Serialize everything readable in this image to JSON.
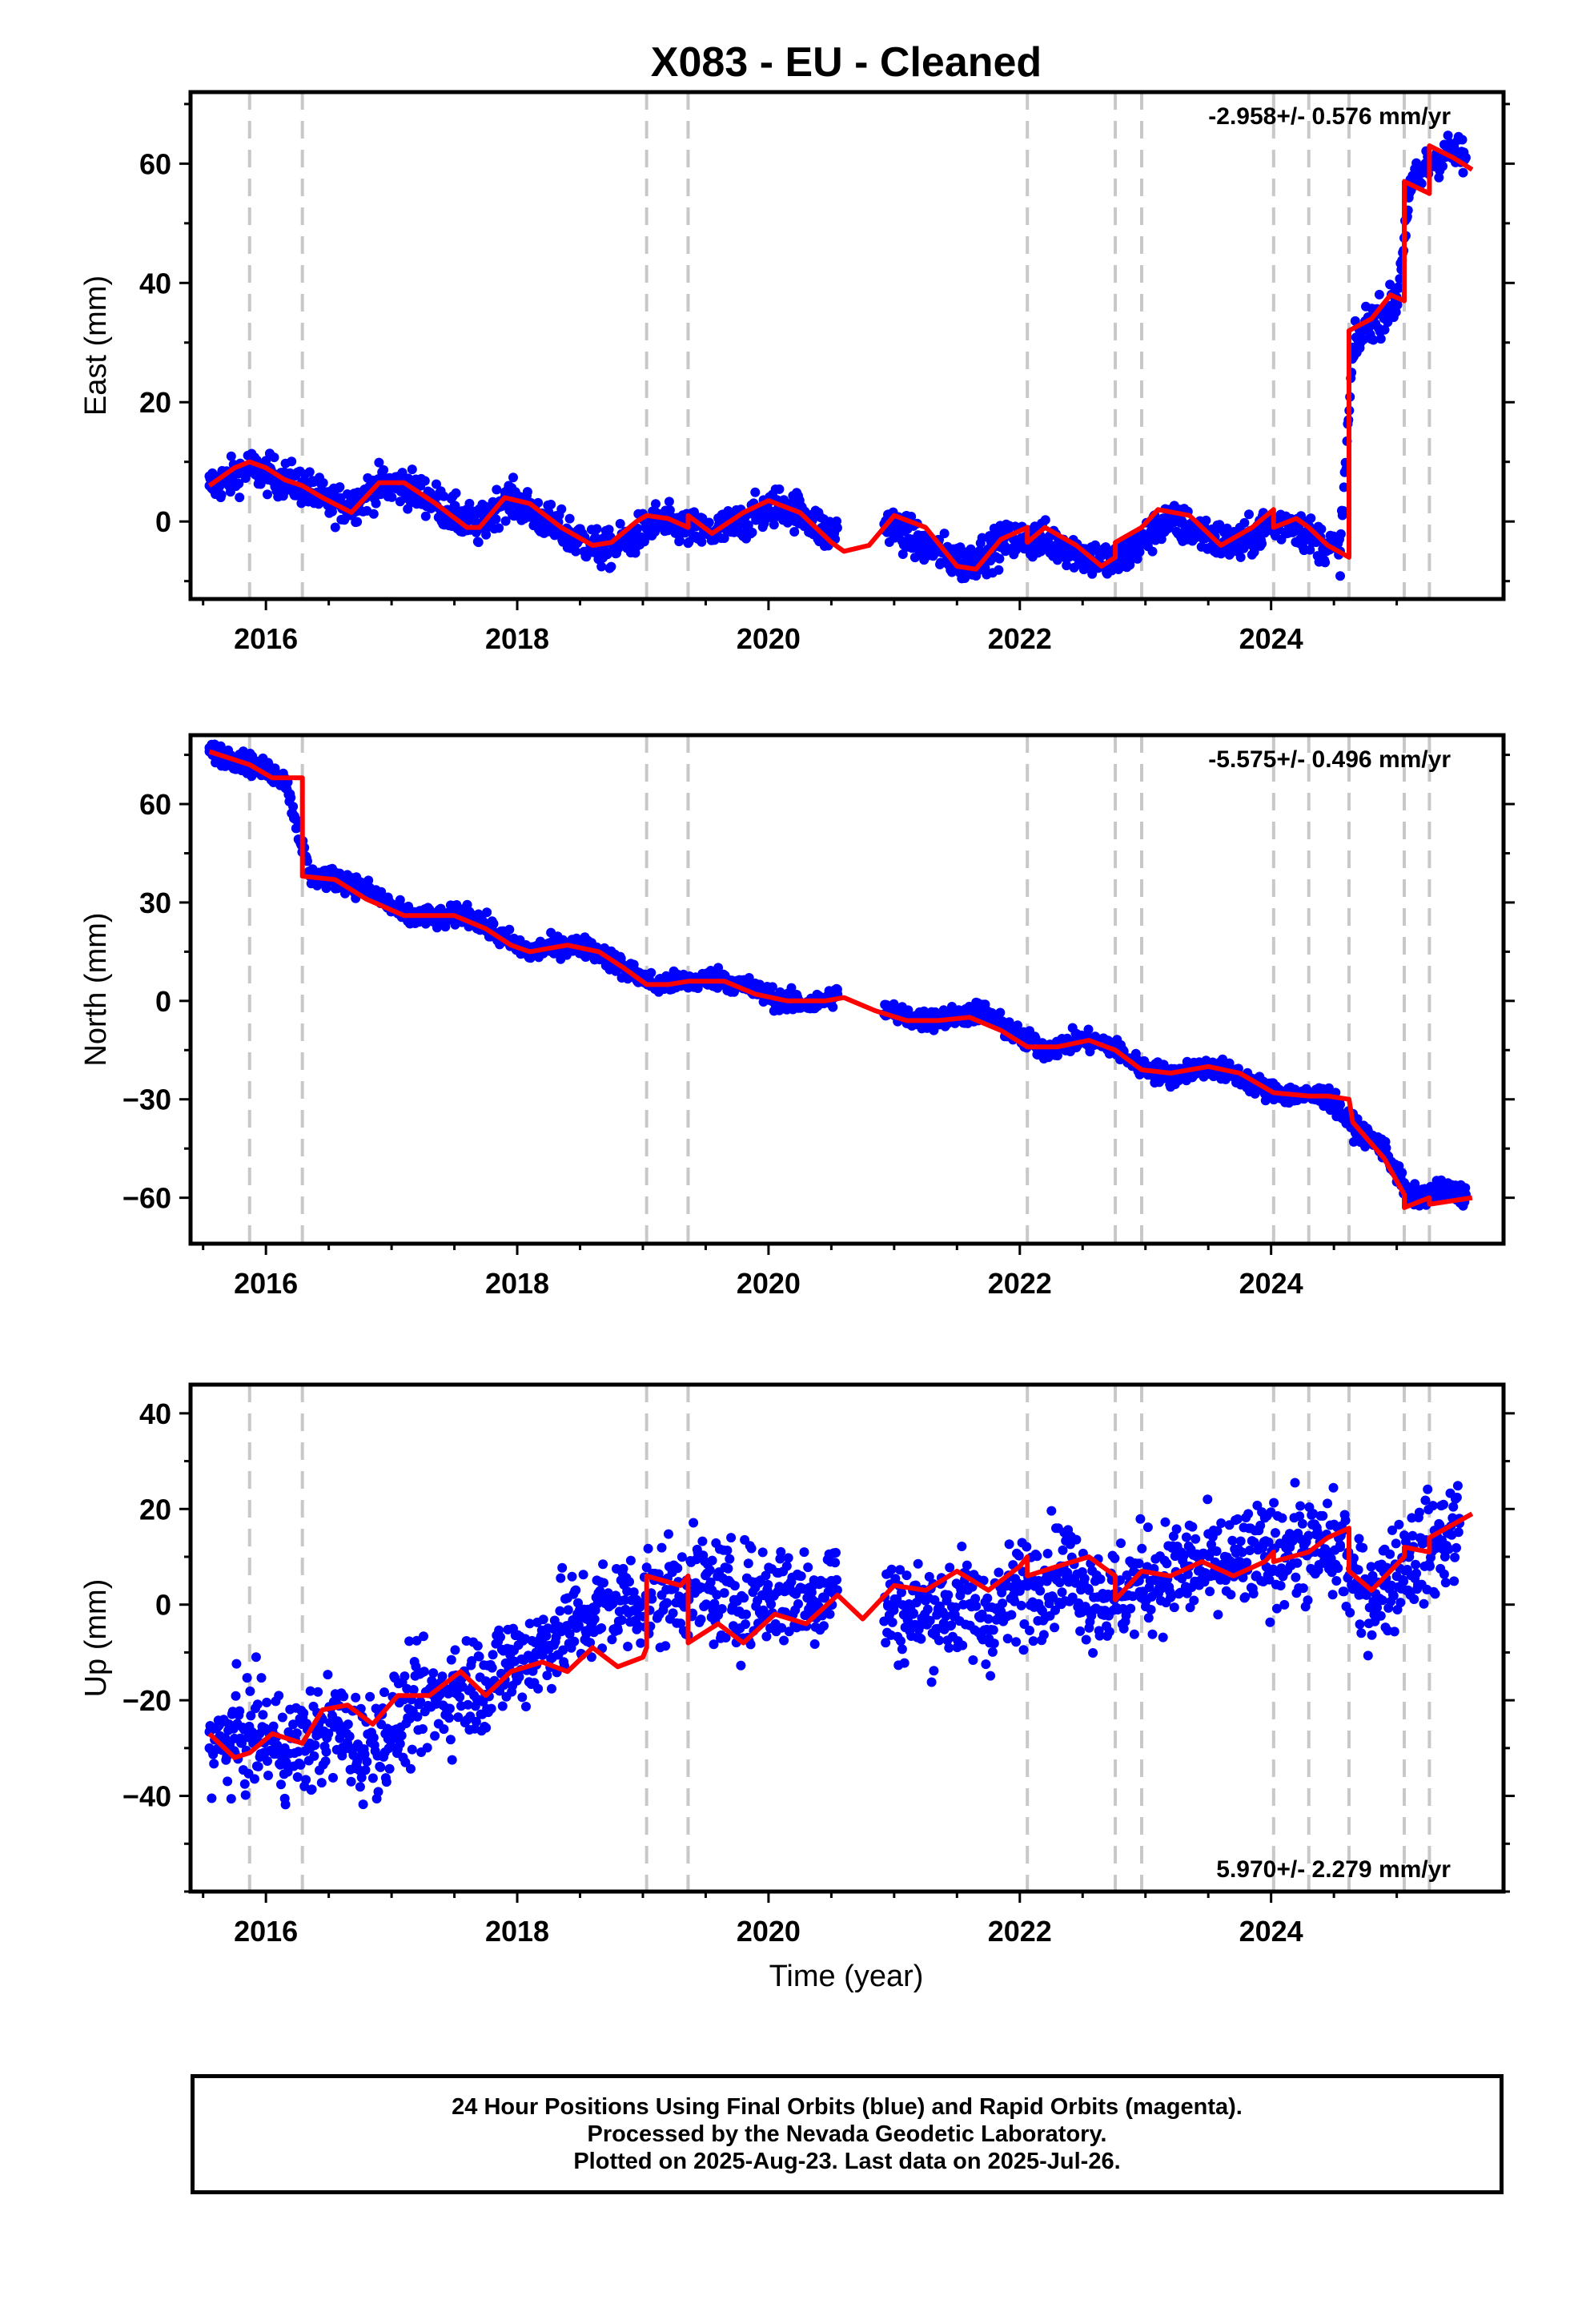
{
  "figure": {
    "title": "X083  - EU - Cleaned",
    "xlabel": "Time (year)"
  },
  "colors": {
    "points": "#0000ff",
    "model": "#ff0000",
    "offset_lines": "#c8c8c8",
    "frame": "#000000"
  },
  "offset_epochs": [
    2015.87,
    2016.29,
    2019.03,
    2019.36,
    2022.06,
    2022.76,
    2022.97,
    2024.02,
    2024.3,
    2024.62,
    2025.06,
    2025.26
  ],
  "footer": {
    "line1": "24 Hour Positions Using Final Orbits (blue) and Rapid Orbits (magenta).",
    "line2": "Processed by the Nevada Geodetic Laboratory.",
    "line3": "Plotted on 2025-Aug-23. Last data on 2025-Jul-26."
  },
  "chart_data": [
    {
      "type": "scatter",
      "ylabel": "East (mm)",
      "rate_label": "-2.958+/- 0.576 mm/yr",
      "rate_position": "top-right",
      "xlim": [
        2015.4,
        2025.85
      ],
      "ylim": [
        -13,
        72
      ],
      "xticks": [
        2016,
        2018,
        2020,
        2022,
        2024
      ],
      "yticks": [
        0,
        20,
        40,
        60
      ],
      "series": [
        {
          "role": "points",
          "x": [
            2015.55,
            2015.7,
            2015.85,
            2016.0,
            2016.15,
            2016.3,
            2016.5,
            2016.7,
            2016.9,
            2017.1,
            2017.3,
            2017.5,
            2017.7,
            2017.9,
            2018.1,
            2018.3,
            2018.5,
            2018.7,
            2018.9,
            2019.1,
            2019.3,
            2019.5,
            2019.7,
            2019.9,
            2020.1,
            2020.3,
            2020.45,
            2020.95,
            2021.15,
            2021.35,
            2021.55,
            2021.75,
            2021.95,
            2022.15,
            2022.35,
            2022.55,
            2022.75,
            2022.95,
            2023.15,
            2023.35,
            2023.55,
            2023.75,
            2023.95,
            2024.15,
            2024.35,
            2024.55,
            2024.65,
            2024.75,
            2024.9,
            2025.0,
            2025.1,
            2025.25,
            2025.4,
            2025.55
          ],
          "y": [
            6,
            7,
            9,
            8,
            7,
            6,
            3,
            3,
            6,
            6,
            4,
            1,
            -1,
            4,
            2,
            -1,
            -3,
            -5,
            -3,
            0,
            -1,
            -2,
            -1,
            1,
            3,
            1,
            -2,
            0,
            -3,
            -5,
            -7,
            -5,
            -3,
            -3,
            -4,
            -6,
            -7,
            -4,
            0,
            -1,
            -3,
            -4,
            -1,
            0,
            -3,
            -5,
            28,
            33,
            35,
            37,
            55,
            60,
            62,
            61
          ]
        },
        {
          "role": "model",
          "x": [
            2015.55,
            2015.75,
            2015.87,
            2016.0,
            2016.15,
            2016.29,
            2016.45,
            2016.68,
            2016.9,
            2017.1,
            2017.35,
            2017.6,
            2017.7,
            2017.9,
            2018.1,
            2018.35,
            2018.6,
            2018.75,
            2018.95,
            2019.03,
            2019.2,
            2019.36,
            2019.36,
            2019.55,
            2019.8,
            2020.0,
            2020.25,
            2020.5,
            2020.6,
            2020.8,
            2021.0,
            2021.25,
            2021.5,
            2021.65,
            2021.85,
            2022.06,
            2022.06,
            2022.2,
            2022.45,
            2022.65,
            2022.76,
            2022.76,
            2022.97,
            2023.1,
            2023.35,
            2023.6,
            2023.85,
            2024.02,
            2024.02,
            2024.2,
            2024.3,
            2024.45,
            2024.62,
            2024.62,
            2024.8,
            2024.95,
            2025.06,
            2025.06,
            2025.26,
            2025.26,
            2025.45,
            2025.6
          ],
          "y": [
            6,
            9,
            10,
            9,
            7,
            6,
            4,
            1.5,
            6.5,
            6.5,
            3,
            -1,
            -1,
            4,
            3,
            -1,
            -4,
            -3.5,
            0,
            1,
            0.5,
            -1,
            1,
            -2,
            1.5,
            3.5,
            1.5,
            -3.5,
            -5,
            -4,
            1,
            -1,
            -7.5,
            -8,
            -3,
            -1,
            -3.5,
            -1,
            -4,
            -7.5,
            -6,
            -3.5,
            -1,
            2,
            1,
            -4,
            -1,
            2,
            -1,
            0.5,
            -1,
            -4,
            -6,
            32,
            34,
            38,
            37,
            57,
            55,
            63,
            61,
            59
          ]
        }
      ]
    },
    {
      "type": "scatter",
      "ylabel": "North (mm)",
      "rate_label": "-5.575+/- 0.496 mm/yr",
      "rate_position": "top-right",
      "xlim": [
        2015.4,
        2025.85
      ],
      "ylim": [
        -74,
        81
      ],
      "xticks": [
        2016,
        2018,
        2020,
        2022,
        2024
      ],
      "yticks": [
        -60,
        -30,
        0,
        30,
        60
      ],
      "series": [
        {
          "role": "points",
          "x": [
            2015.55,
            2015.75,
            2015.95,
            2016.15,
            2016.35,
            2016.6,
            2016.85,
            2017.1,
            2017.4,
            2017.6,
            2017.85,
            2018.1,
            2018.35,
            2018.6,
            2018.85,
            2019.1,
            2019.35,
            2019.6,
            2019.85,
            2020.1,
            2020.35,
            2020.55,
            2020.95,
            2021.2,
            2021.45,
            2021.7,
            2021.95,
            2022.2,
            2022.45,
            2022.7,
            2022.95,
            2023.2,
            2023.45,
            2023.7,
            2023.95,
            2024.2,
            2024.45,
            2024.65,
            2024.9,
            2025.1,
            2025.35,
            2025.55
          ],
          "y": [
            76,
            74,
            71,
            68,
            38,
            37,
            33,
            26,
            25,
            27,
            20,
            15,
            17,
            16,
            10,
            5,
            6,
            7,
            4,
            0,
            -1,
            2,
            -3,
            -6,
            -5,
            -3,
            -10,
            -15,
            -12,
            -13,
            -20,
            -23,
            -20,
            -22,
            -27,
            -29,
            -29,
            -38,
            -45,
            -60,
            -58,
            -59
          ]
        },
        {
          "role": "model",
          "x": [
            2015.55,
            2015.87,
            2016.05,
            2016.29,
            2016.29,
            2016.55,
            2016.8,
            2017.1,
            2017.5,
            2017.75,
            2017.95,
            2018.1,
            2018.4,
            2018.65,
            2018.85,
            2019.03,
            2019.2,
            2019.36,
            2019.65,
            2019.9,
            2020.15,
            2020.45,
            2020.6,
            2020.85,
            2021.1,
            2021.35,
            2021.6,
            2021.85,
            2022.06,
            2022.3,
            2022.55,
            2022.76,
            2022.97,
            2023.2,
            2023.5,
            2023.75,
            2024.02,
            2024.3,
            2024.45,
            2024.62,
            2024.65,
            2024.9,
            2025.06,
            2025.06,
            2025.26,
            2025.26,
            2025.6
          ],
          "y": [
            76,
            72,
            68,
            68,
            38,
            37,
            31,
            26,
            26,
            22,
            17,
            15,
            17,
            15,
            10,
            5,
            5,
            6,
            6,
            2,
            0,
            0,
            1,
            -3,
            -6,
            -6,
            -5,
            -9,
            -14,
            -14,
            -12,
            -15,
            -21,
            -22,
            -20,
            -22,
            -28,
            -29,
            -29,
            -30,
            -37,
            -48,
            -59,
            -63,
            -60,
            -62,
            -60
          ]
        }
      ]
    },
    {
      "type": "scatter",
      "ylabel": "Up (mm)",
      "rate_label": "5.970+/- 2.279 mm/yr",
      "rate_position": "bottom-right",
      "xlim": [
        2015.4,
        2025.85
      ],
      "ylim": [
        -60,
        46
      ],
      "xticks": [
        2016,
        2018,
        2020,
        2022,
        2024
      ],
      "yticks": [
        -40,
        -20,
        0,
        20,
        40
      ],
      "series": [
        {
          "role": "points",
          "x": [
            2015.55,
            2015.75,
            2015.95,
            2016.15,
            2016.35,
            2016.55,
            2016.75,
            2016.95,
            2017.15,
            2017.35,
            2017.55,
            2017.75,
            2017.95,
            2018.15,
            2018.35,
            2018.55,
            2018.75,
            2018.95,
            2019.15,
            2019.35,
            2019.55,
            2019.75,
            2019.95,
            2020.15,
            2020.35,
            2020.5,
            2020.95,
            2021.15,
            2021.35,
            2021.55,
            2021.75,
            2021.95,
            2022.15,
            2022.35,
            2022.55,
            2022.75,
            2022.95,
            2023.15,
            2023.35,
            2023.55,
            2023.75,
            2023.95,
            2024.15,
            2024.35,
            2024.55,
            2024.7,
            2024.9,
            2025.1,
            2025.3,
            2025.5
          ],
          "y": [
            -30,
            -28,
            -27,
            -30,
            -29,
            -25,
            -30,
            -27,
            -22,
            -20,
            -17,
            -16,
            -12,
            -10,
            -5,
            -3,
            0,
            1,
            2,
            4,
            3,
            1,
            2,
            3,
            1,
            5,
            0,
            -2,
            -1,
            0,
            -3,
            2,
            5,
            8,
            3,
            1,
            5,
            6,
            8,
            7,
            9,
            10,
            12,
            11,
            12,
            2,
            4,
            10,
            12,
            17
          ]
        },
        {
          "role": "model",
          "x": [
            2015.55,
            2015.75,
            2015.87,
            2016.05,
            2016.29,
            2016.45,
            2016.65,
            2016.85,
            2017.05,
            2017.3,
            2017.55,
            2017.75,
            2017.95,
            2018.2,
            2018.4,
            2018.6,
            2018.8,
            2019.0,
            2019.03,
            2019.03,
            2019.3,
            2019.36,
            2019.36,
            2019.6,
            2019.8,
            2020.05,
            2020.3,
            2020.55,
            2020.75,
            2021.0,
            2021.25,
            2021.5,
            2021.75,
            2022.0,
            2022.06,
            2022.06,
            2022.3,
            2022.55,
            2022.76,
            2022.76,
            2022.97,
            2023.2,
            2023.45,
            2023.7,
            2023.95,
            2024.02,
            2024.02,
            2024.3,
            2024.45,
            2024.62,
            2024.62,
            2024.8,
            2025.06,
            2025.06,
            2025.26,
            2025.26,
            2025.6
          ],
          "y": [
            -27,
            -32,
            -31,
            -27,
            -29,
            -22,
            -21,
            -25,
            -19,
            -19,
            -14,
            -19,
            -14,
            -12,
            -14,
            -9,
            -13,
            -11,
            -9,
            6,
            4,
            6,
            -8,
            -4,
            -8,
            -2,
            -4,
            2,
            -3,
            4,
            3,
            7,
            3,
            8,
            10,
            6,
            8,
            10,
            6,
            1,
            7,
            6,
            9,
            6,
            9,
            11,
            9,
            11,
            14,
            16,
            7,
            3,
            10,
            12,
            11,
            14,
            19
          ]
        }
      ]
    }
  ]
}
